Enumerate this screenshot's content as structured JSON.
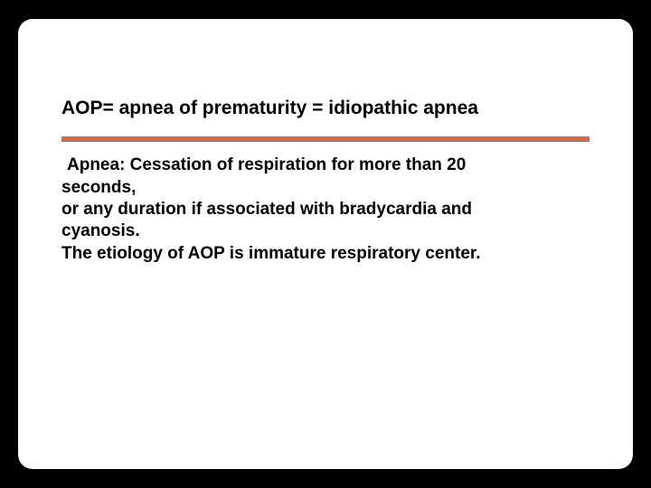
{
  "slide": {
    "title": "AOP= apnea of prematurity = idiopathic apnea",
    "body": {
      "line1": "Apnea: Cessation of respiration for more than 20",
      "line2": "seconds,",
      "line3": "or any duration if associated with bradycardia and",
      "line4": "cyanosis.",
      "line5": "The etiology of AOP is immature respiratory center."
    },
    "styles": {
      "background_color": "#000000",
      "slide_background": "#ffffff",
      "title_fontsize": 21,
      "title_fontweight": "bold",
      "title_color": "#000000",
      "body_fontsize": 19,
      "body_fontweight": "bold",
      "body_color": "#000000",
      "divider_color": "#d46a4a",
      "divider_border_color": "#7f7f7f",
      "slide_border_radius": 16
    }
  }
}
